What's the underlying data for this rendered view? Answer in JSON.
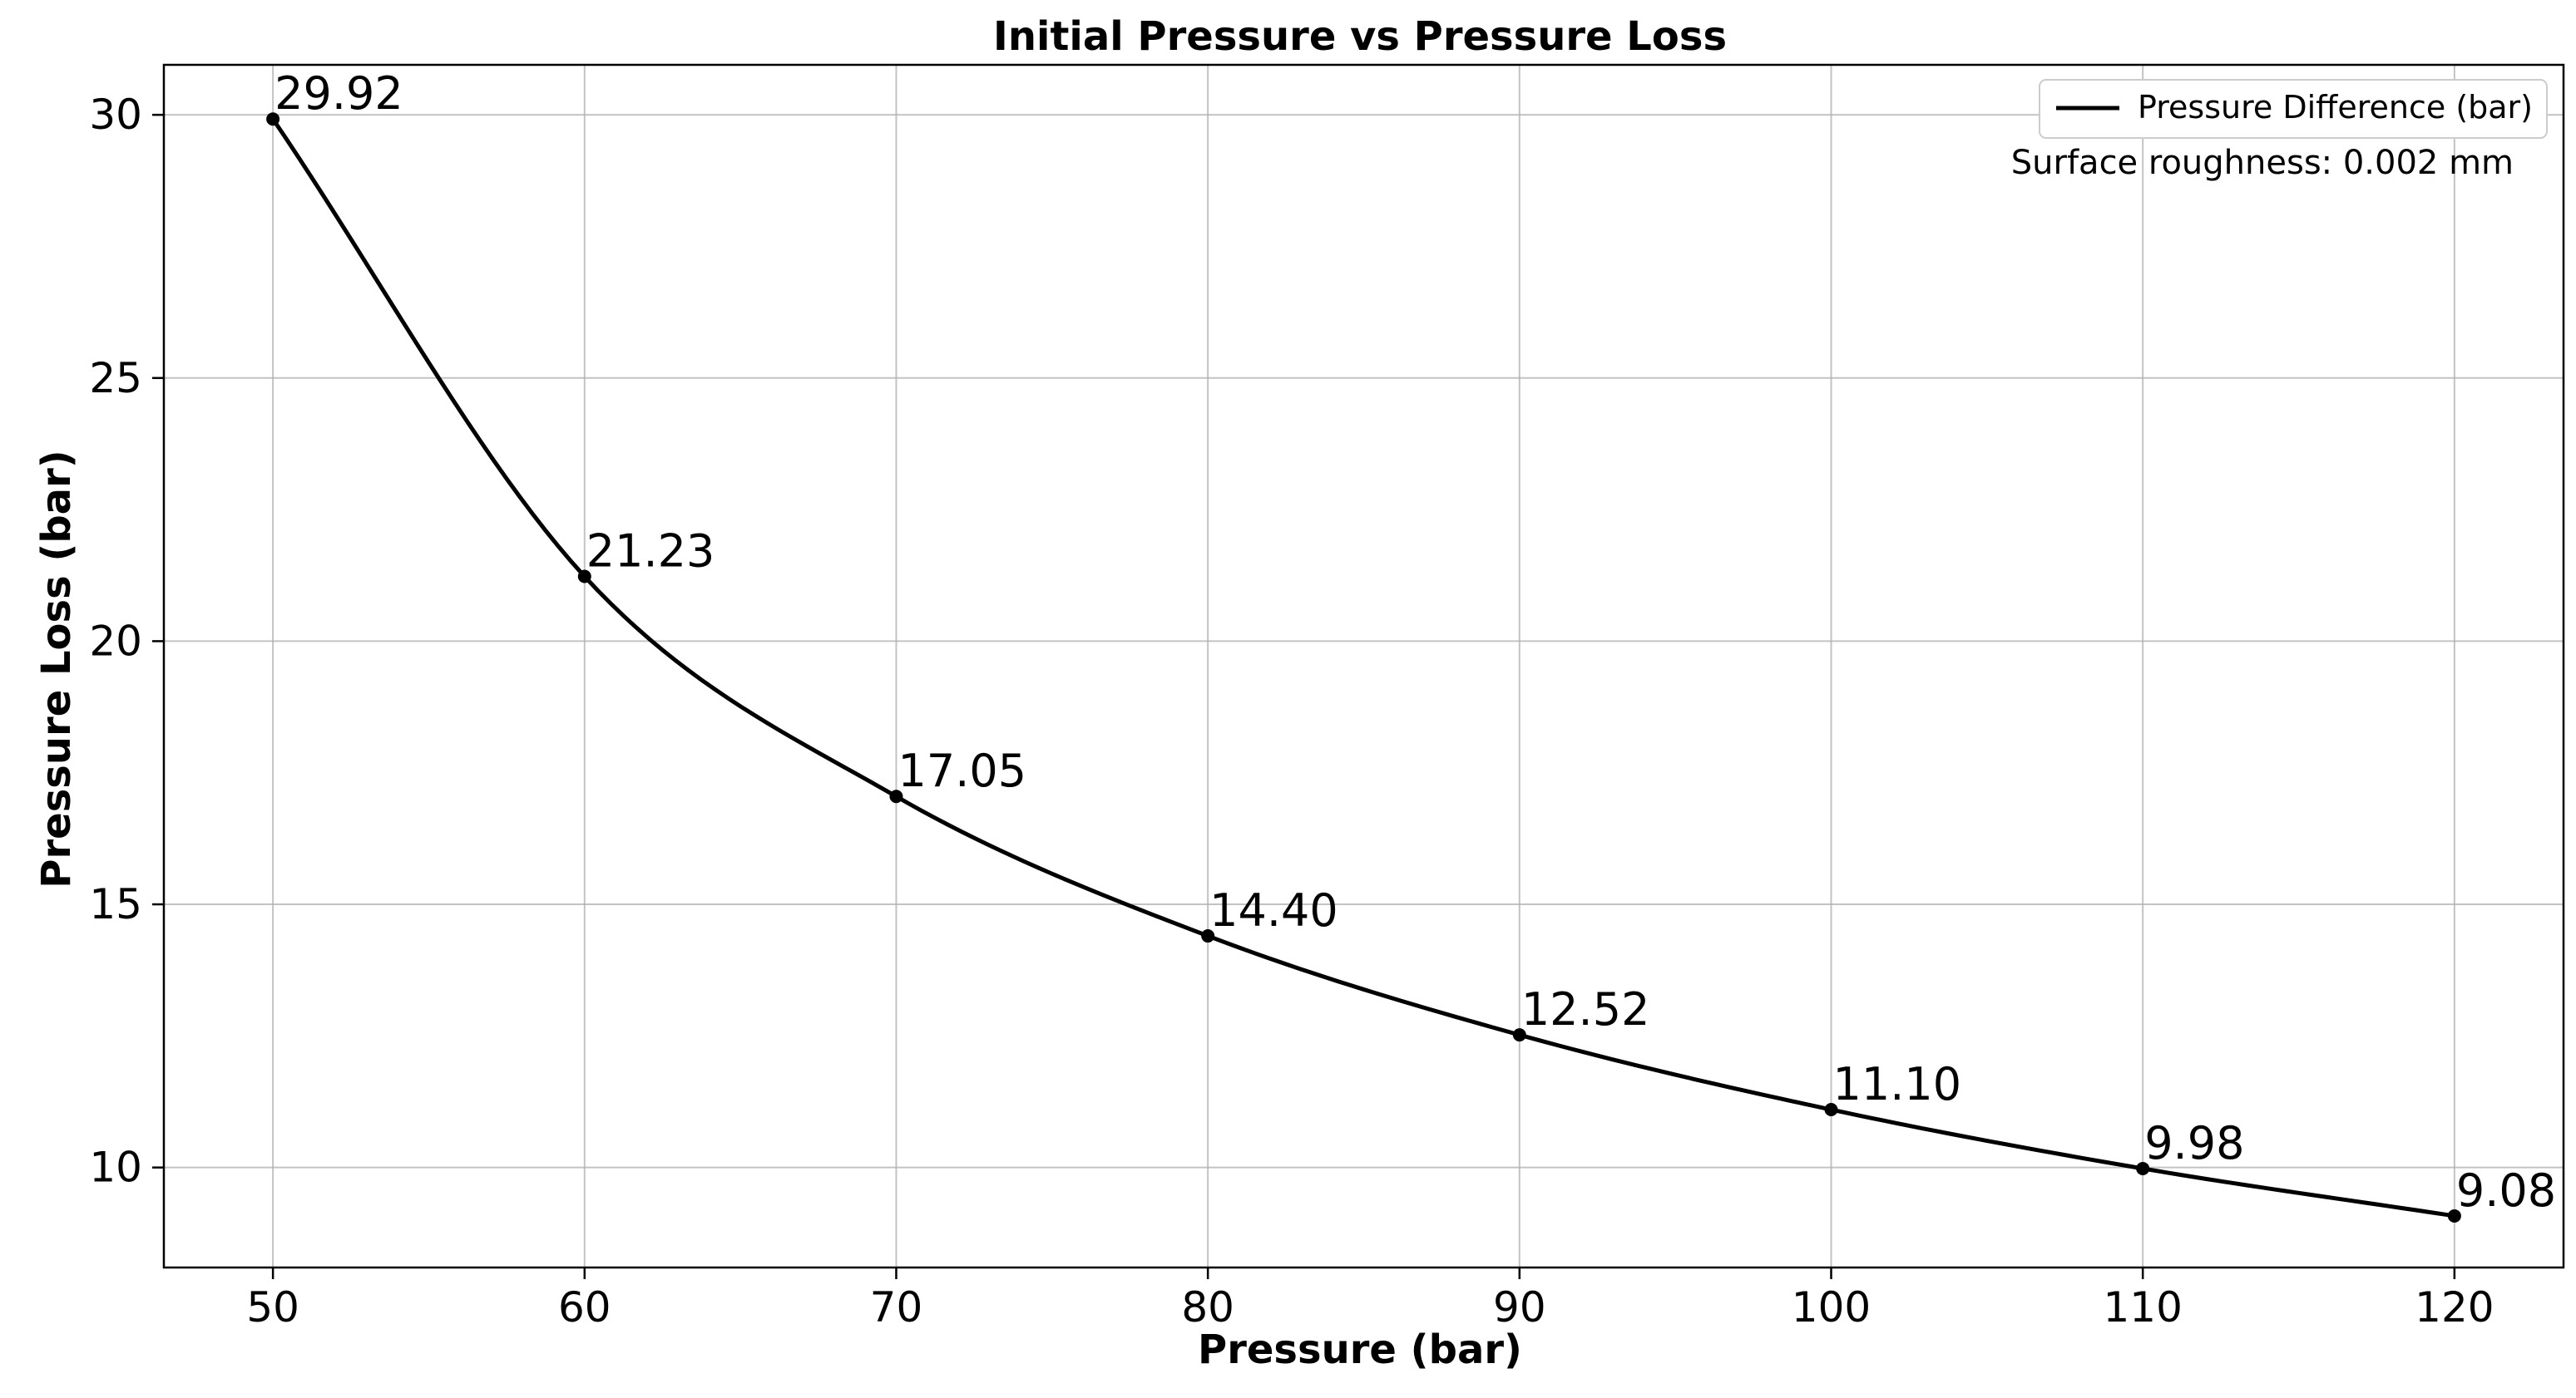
{
  "chart_data": {
    "type": "line",
    "title": "Initial Pressure vs Pressure Loss",
    "xlabel": "Pressure (bar)",
    "ylabel": "Pressure Loss (bar)",
    "xlim": [
      46.5,
      123.5
    ],
    "ylim": [
      8.1,
      30.95
    ],
    "xticks": [
      50,
      60,
      70,
      80,
      90,
      100,
      110,
      120
    ],
    "yticks": [
      10,
      15,
      20,
      25,
      30
    ],
    "grid": true,
    "legend_position": "top-right",
    "series": [
      {
        "name": "Pressure Difference (bar)",
        "color": "#000000",
        "x": [
          50,
          60,
          70,
          80,
          90,
          100,
          110,
          120
        ],
        "values": [
          29.92,
          21.23,
          17.05,
          14.4,
          12.52,
          11.1,
          9.98,
          9.08
        ]
      }
    ],
    "data_labels": [
      "29.92",
      "21.23",
      "17.05",
      "14.40",
      "12.52",
      "11.10",
      "9.98",
      "9.08"
    ],
    "annotation": "Surface roughness: 0.002 mm"
  }
}
